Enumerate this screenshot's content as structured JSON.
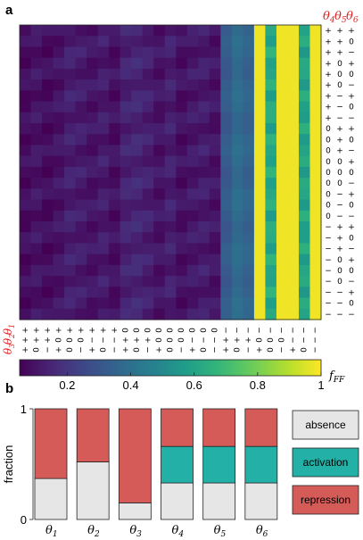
{
  "chart_data": [
    {
      "type": "heatmap",
      "panel_label": "a",
      "colorbar": {
        "label": "f_FF",
        "ticks": [
          "0.2",
          "0.4",
          "0.6",
          "0.8",
          "1"
        ],
        "range": [
          0.05,
          1.0
        ],
        "colormap": "viridis"
      },
      "row_header": [
        "θ4",
        "θ5",
        "θ6"
      ],
      "col_header": [
        "θ1",
        "θ2",
        "θ3"
      ],
      "row_labels": [
        [
          "+",
          "+",
          "+"
        ],
        [
          "+",
          "+",
          "0"
        ],
        [
          "+",
          "+",
          "−"
        ],
        [
          "+",
          "0",
          "+"
        ],
        [
          "+",
          "0",
          "0"
        ],
        [
          "+",
          "0",
          "−"
        ],
        [
          "+",
          "−",
          "+"
        ],
        [
          "+",
          "−",
          "0"
        ],
        [
          "+",
          "−",
          "−"
        ],
        [
          "0",
          "+",
          "+"
        ],
        [
          "0",
          "+",
          "0"
        ],
        [
          "0",
          "+",
          "−"
        ],
        [
          "0",
          "0",
          "+"
        ],
        [
          "0",
          "0",
          "0"
        ],
        [
          "0",
          "0",
          "−"
        ],
        [
          "0",
          "−",
          "+"
        ],
        [
          "0",
          "−",
          "0"
        ],
        [
          "0",
          "−",
          "−"
        ],
        [
          "−",
          "+",
          "+"
        ],
        [
          "−",
          "+",
          "0"
        ],
        [
          "−",
          "+",
          "−"
        ],
        [
          "−",
          "0",
          "+"
        ],
        [
          "−",
          "0",
          "0"
        ],
        [
          "−",
          "0",
          "−"
        ],
        [
          "−",
          "−",
          "+"
        ],
        [
          "−",
          "−",
          "0"
        ],
        [
          "−",
          "−",
          "−"
        ]
      ],
      "col_labels": [
        [
          "+",
          "+",
          "+"
        ],
        [
          "+",
          "+",
          "0"
        ],
        [
          "+",
          "+",
          "−"
        ],
        [
          "+",
          "0",
          "+"
        ],
        [
          "+",
          "0",
          "0"
        ],
        [
          "+",
          "0",
          "−"
        ],
        [
          "+",
          "−",
          "+"
        ],
        [
          "+",
          "−",
          "0"
        ],
        [
          "+",
          "−",
          "−"
        ],
        [
          "0",
          "+",
          "+"
        ],
        [
          "0",
          "+",
          "0"
        ],
        [
          "0",
          "+",
          "−"
        ],
        [
          "0",
          "0",
          "+"
        ],
        [
          "0",
          "0",
          "0"
        ],
        [
          "0",
          "0",
          "−"
        ],
        [
          "0",
          "−",
          "+"
        ],
        [
          "0",
          "−",
          "0"
        ],
        [
          "0",
          "−",
          "−"
        ],
        [
          "−",
          "+",
          "+"
        ],
        [
          "−",
          "+",
          "0"
        ],
        [
          "−",
          "+",
          "−"
        ],
        [
          "−",
          "0",
          "+"
        ],
        [
          "−",
          "0",
          "0"
        ],
        [
          "−",
          "0",
          "−"
        ],
        [
          "−",
          "−",
          "+"
        ],
        [
          "−",
          "−",
          "0"
        ],
        [
          "−",
          "−",
          "−"
        ]
      ],
      "column_base_values": [
        0.08,
        0.1,
        0.08,
        0.1,
        0.13,
        0.12,
        0.1,
        0.12,
        0.09,
        0.14,
        0.15,
        0.13,
        0.1,
        0.13,
        0.09,
        0.11,
        0.12,
        0.1,
        0.32,
        0.38,
        0.35,
        0.98,
        0.62,
        0.98,
        0.98,
        0.6,
        0.98
      ]
    },
    {
      "type": "bar",
      "panel_label": "b",
      "stacked": true,
      "categories": [
        "θ1",
        "θ2",
        "θ3",
        "θ4",
        "θ5",
        "θ6"
      ],
      "series": [
        {
          "name": "absence",
          "values": [
            0.37,
            0.52,
            0.15,
            0.33,
            0.33,
            0.33
          ]
        },
        {
          "name": "activation",
          "values": [
            0.0,
            0.0,
            0.0,
            0.33,
            0.33,
            0.33
          ]
        },
        {
          "name": "repression",
          "values": [
            0.63,
            0.48,
            0.85,
            0.34,
            0.34,
            0.34
          ]
        }
      ],
      "ylabel": "fraction",
      "yticks": [
        "0",
        "1"
      ],
      "ylim": [
        0,
        1
      ],
      "legend_position": "right"
    }
  ],
  "colors": {
    "absence": "#e6e6e6",
    "activation": "#23b0a6",
    "repression": "#d45b58",
    "header_red": "#dd2222"
  }
}
